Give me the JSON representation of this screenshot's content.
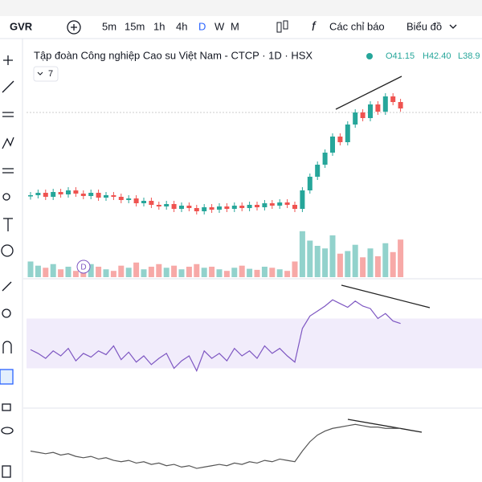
{
  "toolbar": {
    "symbol": "GVR",
    "intervals": [
      "5m",
      "15m",
      "1h",
      "4h",
      "D",
      "W",
      "M"
    ],
    "indicators": "Các chỉ báo",
    "chart": "Biểu đồ"
  },
  "legend": {
    "title": "Tập đoàn Công nghiệp Cao su Việt Nam - CTCP · 1D · HSX",
    "open": "O41.15",
    "high": "H42.40",
    "low": "L38.9",
    "collapsed": "7",
    "marker": "D"
  },
  "chart_data": {
    "type": "candlestick",
    "ylim": [
      18,
      44
    ],
    "close": [
      28.2,
      28.5,
      28.0,
      28.6,
      28.3,
      28.8,
      28.4,
      28.1,
      28.5,
      27.9,
      28.2,
      28.0,
      27.6,
      27.8,
      27.2,
      27.5,
      27.0,
      26.8,
      27.1,
      26.5,
      26.9,
      26.6,
      26.2,
      26.7,
      26.4,
      26.8,
      26.5,
      26.9,
      26.6,
      27.0,
      26.7,
      27.2,
      26.9,
      27.3,
      27.0,
      26.5,
      28.8,
      30.5,
      32.0,
      33.5,
      35.5,
      34.8,
      37.0,
      38.5,
      37.8,
      39.5,
      38.6,
      40.5,
      39.8,
      39.0
    ],
    "up_color": "#26a69a",
    "down_color": "#ef5350",
    "volume": {
      "ylim": [
        0,
        100
      ],
      "values": [
        30,
        22,
        18,
        25,
        15,
        20,
        12,
        18,
        25,
        20,
        15,
        12,
        22,
        18,
        28,
        15,
        20,
        25,
        18,
        22,
        15,
        20,
        25,
        18,
        20,
        15,
        12,
        18,
        22,
        16,
        14,
        20,
        18,
        15,
        12,
        30,
        88,
        70,
        60,
        55,
        80,
        45,
        50,
        62,
        38,
        55,
        40,
        65,
        48,
        72
      ]
    },
    "rsi": {
      "ylim": [
        0,
        100
      ],
      "band": [
        30,
        70
      ],
      "color": "#7e57c2",
      "values": [
        45,
        42,
        38,
        44,
        40,
        46,
        36,
        42,
        39,
        44,
        41,
        48,
        37,
        43,
        35,
        40,
        33,
        38,
        42,
        30,
        36,
        40,
        28,
        44,
        38,
        42,
        36,
        46,
        40,
        44,
        38,
        48,
        42,
        46,
        40,
        35,
        62,
        72,
        76,
        80,
        85,
        82,
        79,
        84,
        80,
        78,
        70,
        74,
        68,
        66
      ]
    },
    "macd": {
      "ylim": [
        -2,
        3
      ],
      "color": "#555",
      "values": [
        0.2,
        0.1,
        0.0,
        0.1,
        -0.1,
        0.0,
        -0.2,
        -0.3,
        -0.2,
        -0.4,
        -0.3,
        -0.5,
        -0.6,
        -0.5,
        -0.7,
        -0.6,
        -0.8,
        -0.7,
        -0.9,
        -0.8,
        -1.0,
        -0.9,
        -1.1,
        -1.0,
        -0.9,
        -0.8,
        -0.9,
        -0.7,
        -0.8,
        -0.6,
        -0.7,
        -0.5,
        -0.6,
        -0.4,
        -0.5,
        -0.6,
        0.2,
        0.9,
        1.4,
        1.7,
        1.9,
        2.0,
        2.1,
        2.2,
        2.1,
        2.0,
        2.0,
        1.9,
        1.9,
        1.9
      ]
    }
  }
}
